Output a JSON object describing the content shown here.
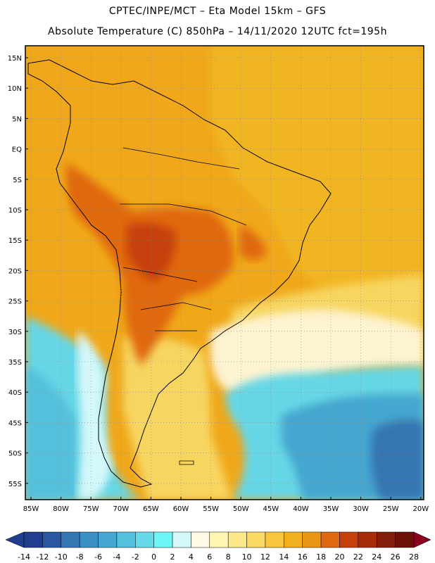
{
  "title_line1": "CPTEC/INPE/MCT –  Eta Model 15km – GFS",
  "title_line2": "Absolute Temperature (C) 850hPa – 14/11/2020 12UTC fct=195h",
  "lat_labels": [
    "15N",
    "10N",
    "5N",
    "EQ",
    "5S",
    "10S",
    "15S",
    "20S",
    "25S",
    "30S",
    "35S",
    "40S",
    "45S",
    "50S",
    "55S"
  ],
  "lon_labels": [
    "85W",
    "80W",
    "75W",
    "70W",
    "65W",
    "60W",
    "55W",
    "50W",
    "45W",
    "40W",
    "35W",
    "30W",
    "25W",
    "20W"
  ],
  "colorbar": {
    "labels": [
      "-14",
      "-12",
      "-10",
      "-8",
      "-6",
      "-4",
      "-2",
      "0",
      "2",
      "4",
      "6",
      "8",
      "10",
      "12",
      "14",
      "16",
      "18",
      "20",
      "22",
      "24",
      "26",
      "28"
    ],
    "colors": [
      "#9e0142",
      "#213e8e",
      "#2a57a2",
      "#3475b2",
      "#3c8fc2",
      "#45a6cf",
      "#55c0dc",
      "#66dae8",
      "#6ef6f6",
      "#d4f8fa",
      "#fff9e6",
      "#fdf6b2",
      "#fbe88a",
      "#f9da64",
      "#f5c63e",
      "#f1b01d",
      "#eb9515",
      "#e0690f",
      "#c7410b",
      "#a82b0a",
      "#841d0a",
      "#6d1006",
      "#8c0020"
    ]
  },
  "colors": {
    "frame": "#000000",
    "gridline": "#888888",
    "coast": "#000000"
  }
}
